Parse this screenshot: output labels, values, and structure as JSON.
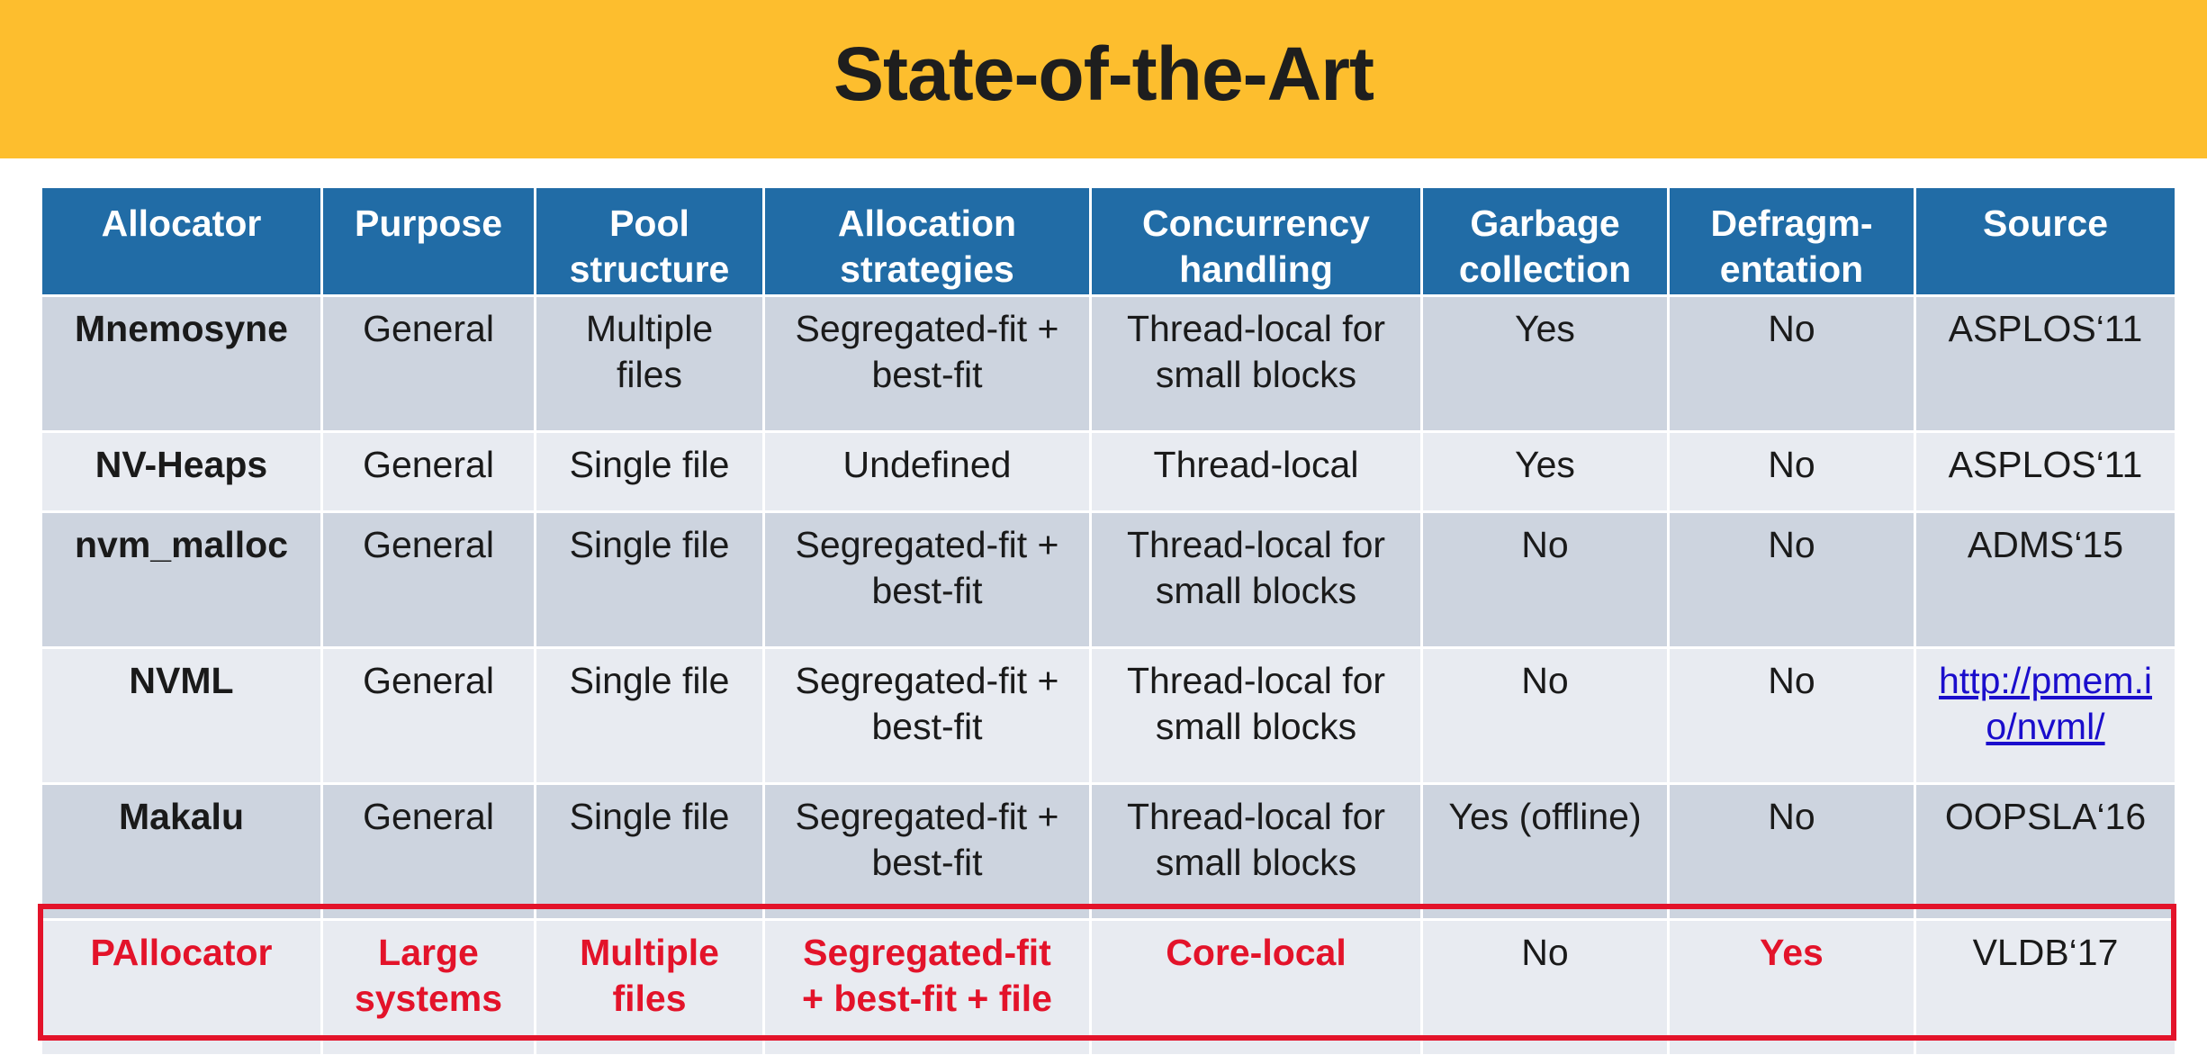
{
  "title": "State-of-the-Art",
  "headers": [
    "Allocator",
    "Purpose",
    "Pool structure",
    "Allocation strategies",
    "Concurrency handling",
    "Garbage collection",
    "Defragm-entation",
    "Source"
  ],
  "header_lines": [
    [
      "Allocator"
    ],
    [
      "Purpose"
    ],
    [
      "Pool",
      "structure"
    ],
    [
      "Allocation",
      "strategies"
    ],
    [
      "Concurrency",
      "handling"
    ],
    [
      "Garbage",
      "collection"
    ],
    [
      "Defragm-",
      "entation"
    ],
    [
      "Source"
    ]
  ],
  "rows": [
    {
      "allocator": "Mnemosyne",
      "purpose": "General",
      "pool": [
        "Multiple",
        "files"
      ],
      "strategies": [
        "Segregated-fit +",
        "best-fit"
      ],
      "concurrency": [
        "Thread-local for",
        "small blocks"
      ],
      "gc": "Yes",
      "defrag": "No",
      "source": "ASPLOS‘11"
    },
    {
      "allocator": "NV-Heaps",
      "purpose": "General",
      "pool": [
        "Single file"
      ],
      "strategies": [
        "Undefined"
      ],
      "concurrency": [
        "Thread-local"
      ],
      "gc": "Yes",
      "defrag": "No",
      "source": "ASPLOS‘11"
    },
    {
      "allocator": "nvm_malloc",
      "purpose": "General",
      "pool": [
        "Single file"
      ],
      "strategies": [
        "Segregated-fit +",
        "best-fit"
      ],
      "concurrency": [
        "Thread-local for",
        "small blocks"
      ],
      "gc": "No",
      "defrag": "No",
      "source": "ADMS‘15"
    },
    {
      "allocator": "NVML",
      "purpose": "General",
      "pool": [
        "Single file"
      ],
      "strategies": [
        "Segregated-fit +",
        "best-fit"
      ],
      "concurrency": [
        "Thread-local for",
        "small blocks"
      ],
      "gc": "No",
      "defrag": "No",
      "source_link": [
        "http://pmem.i",
        "o/nvml/"
      ]
    },
    {
      "allocator": "Makalu",
      "purpose": "General",
      "pool": [
        "Single file"
      ],
      "strategies": [
        "Segregated-fit +",
        "best-fit"
      ],
      "concurrency": [
        "Thread-local for",
        "small blocks"
      ],
      "gc": "Yes (offline)",
      "defrag": "No",
      "source": "OOPSLA‘16"
    },
    {
      "allocator": "PAllocator",
      "purpose": [
        "Large",
        "systems"
      ],
      "pool": [
        "Multiple",
        "files"
      ],
      "strategies": [
        "Segregated-fit",
        "+ best-fit + file"
      ],
      "concurrency": [
        "Core-local"
      ],
      "gc": "No",
      "defrag": "Yes",
      "source": "VLDB‘17"
    }
  ],
  "colors": {
    "title_bar": "#fdbe2e",
    "header_bg": "#216ca6",
    "row_dark": "#cdd4df",
    "row_light": "#e8ebf1",
    "highlight": "#e3132a",
    "link": "#1a0dcc"
  }
}
